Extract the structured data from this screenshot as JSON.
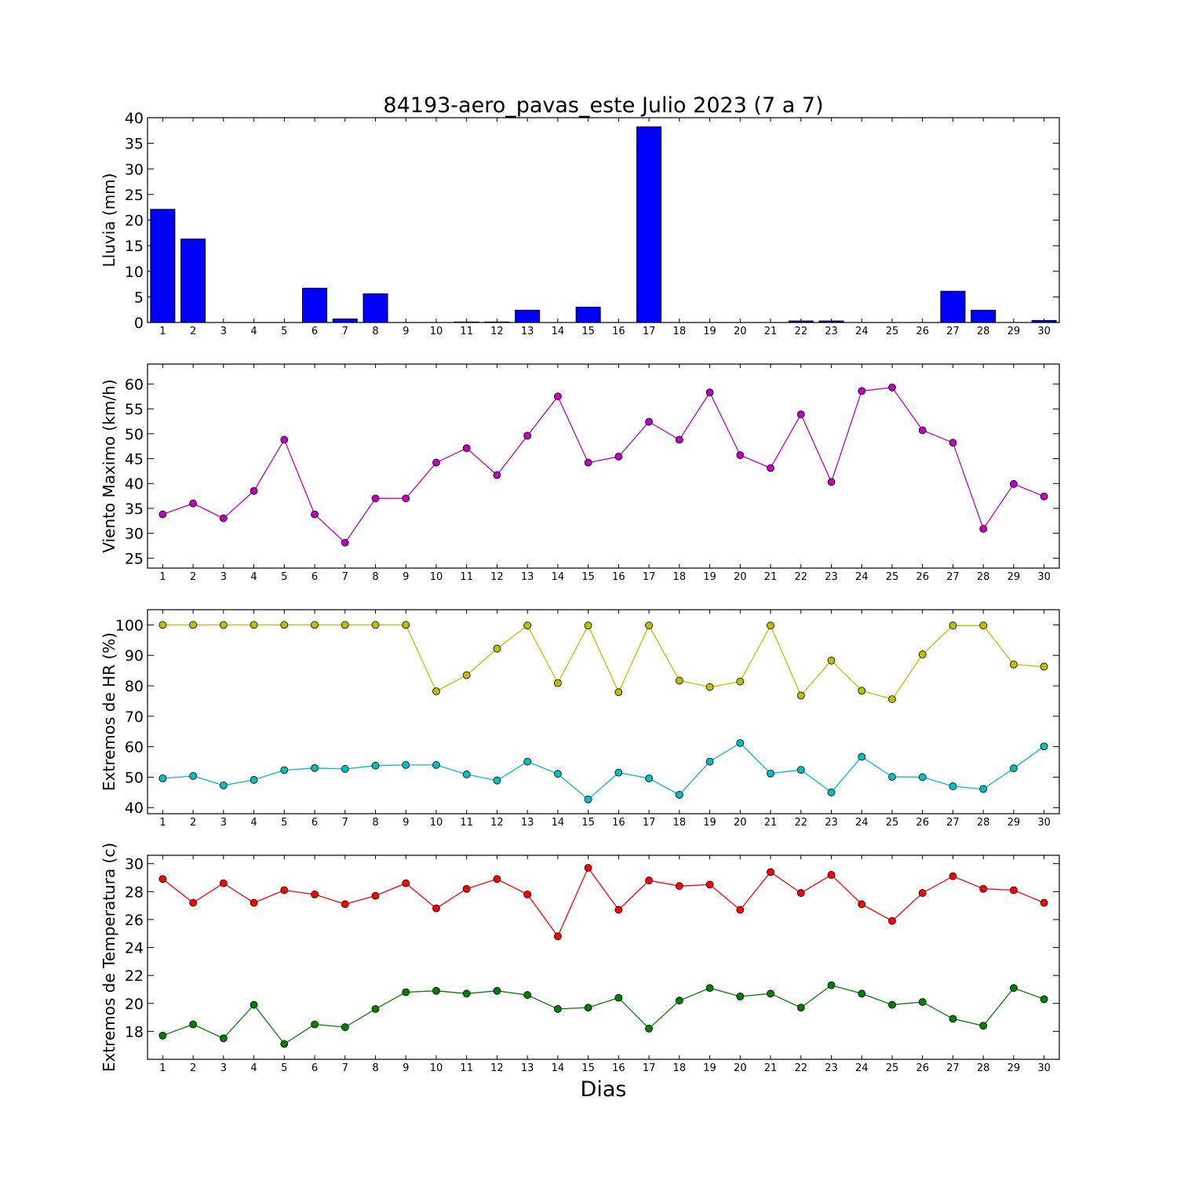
{
  "title": "84193-aero_pavas_este Julio 2023  (7 a 7)",
  "xlabel": "Dias",
  "colors": {
    "rain": "#0000ff",
    "wind": "#bf00bf",
    "hr_max": "#bfbf00",
    "hr_min": "#00bfbf",
    "temp_max": "#ff0000",
    "temp_min": "#008000"
  },
  "chart_data": [
    {
      "type": "bar",
      "ylabel": "Lluvia (mm)",
      "ylim": [
        0,
        40
      ],
      "yticks": [
        0,
        5,
        10,
        15,
        20,
        25,
        30,
        35,
        40
      ],
      "categories": [
        1,
        2,
        3,
        4,
        5,
        6,
        7,
        8,
        9,
        10,
        11,
        12,
        13,
        14,
        15,
        16,
        17,
        18,
        19,
        20,
        21,
        22,
        23,
        24,
        25,
        26,
        27,
        28,
        29,
        30
      ],
      "values": [
        22.1,
        16.3,
        0,
        0,
        0,
        6.7,
        0.7,
        5.6,
        0,
        0,
        0.1,
        0.1,
        2.4,
        0,
        3.0,
        0,
        38.2,
        0,
        0,
        0,
        0,
        0.3,
        0.3,
        0,
        0,
        0,
        6.1,
        2.4,
        0,
        0.4
      ]
    },
    {
      "type": "line",
      "ylabel": "Viento Maximo (km/h)",
      "ylim": [
        23,
        64
      ],
      "yticks": [
        25,
        30,
        35,
        40,
        45,
        50,
        55,
        60
      ],
      "x": [
        1,
        2,
        3,
        4,
        5,
        6,
        7,
        8,
        9,
        10,
        11,
        12,
        13,
        14,
        15,
        16,
        17,
        18,
        19,
        20,
        21,
        22,
        23,
        24,
        25,
        26,
        27,
        28,
        29,
        30
      ],
      "series": [
        {
          "color": "#bf00bf",
          "values": [
            33.8,
            36.0,
            33.0,
            38.5,
            48.8,
            33.8,
            28.1,
            37.0,
            37.0,
            44.2,
            47.1,
            41.7,
            49.6,
            57.5,
            44.2,
            45.4,
            52.4,
            48.8,
            58.3,
            45.7,
            43.1,
            53.9,
            40.3,
            58.6,
            59.3,
            50.7,
            48.2,
            30.9,
            39.9,
            37.4
          ]
        }
      ]
    },
    {
      "type": "line",
      "ylabel": "Extremos de HR (%)",
      "ylim": [
        38,
        105
      ],
      "yticks": [
        40,
        50,
        60,
        70,
        80,
        90,
        100
      ],
      "x": [
        1,
        2,
        3,
        4,
        5,
        6,
        7,
        8,
        9,
        10,
        11,
        12,
        13,
        14,
        15,
        16,
        17,
        18,
        19,
        20,
        21,
        22,
        23,
        24,
        25,
        26,
        27,
        28,
        29,
        30
      ],
      "series": [
        {
          "color": "#bfbf00",
          "values": [
            100,
            100,
            100,
            100,
            100,
            100,
            100,
            100,
            100,
            78.2,
            83.5,
            92.2,
            99.8,
            80.9,
            99.8,
            77.9,
            99.8,
            81.7,
            79.6,
            81.4,
            99.8,
            76.8,
            88.3,
            78.4,
            75.6,
            90.3,
            99.8,
            99.8,
            87.0,
            86.3
          ]
        },
        {
          "color": "#00bfbf",
          "values": [
            49.6,
            50.4,
            47.3,
            49.1,
            52.3,
            53.0,
            52.7,
            53.8,
            54.0,
            54.0,
            50.9,
            48.9,
            55.1,
            51.1,
            42.7,
            51.5,
            49.6,
            44.2,
            55.1,
            61.2,
            51.2,
            52.4,
            45.0,
            56.7,
            50.1,
            50.0,
            47.0,
            46.1,
            52.9,
            60.1
          ]
        }
      ]
    },
    {
      "type": "line",
      "ylabel": "Extremos de Temperatura (c)",
      "ylim": [
        16,
        30.6
      ],
      "yticks": [
        18,
        20,
        22,
        24,
        26,
        28,
        30
      ],
      "x": [
        1,
        2,
        3,
        4,
        5,
        6,
        7,
        8,
        9,
        10,
        11,
        12,
        13,
        14,
        15,
        16,
        17,
        18,
        19,
        20,
        21,
        22,
        23,
        24,
        25,
        26,
        27,
        28,
        29,
        30
      ],
      "series": [
        {
          "color": "#ff0000",
          "values": [
            28.9,
            27.2,
            28.6,
            27.2,
            28.1,
            27.8,
            27.1,
            27.7,
            28.6,
            26.8,
            28.2,
            28.9,
            27.8,
            24.8,
            29.7,
            26.7,
            28.8,
            28.4,
            28.5,
            26.7,
            29.4,
            27.9,
            29.2,
            27.1,
            25.9,
            27.9,
            29.1,
            28.2,
            28.1,
            27.2
          ]
        },
        {
          "color": "#008000",
          "values": [
            17.7,
            18.5,
            17.5,
            19.9,
            17.1,
            18.5,
            18.3,
            19.6,
            20.8,
            20.9,
            20.7,
            20.9,
            20.6,
            19.6,
            19.7,
            20.4,
            18.2,
            20.2,
            21.1,
            20.5,
            20.7,
            19.7,
            21.3,
            20.7,
            19.9,
            20.1,
            18.9,
            18.4,
            21.1,
            20.3
          ]
        }
      ]
    }
  ]
}
